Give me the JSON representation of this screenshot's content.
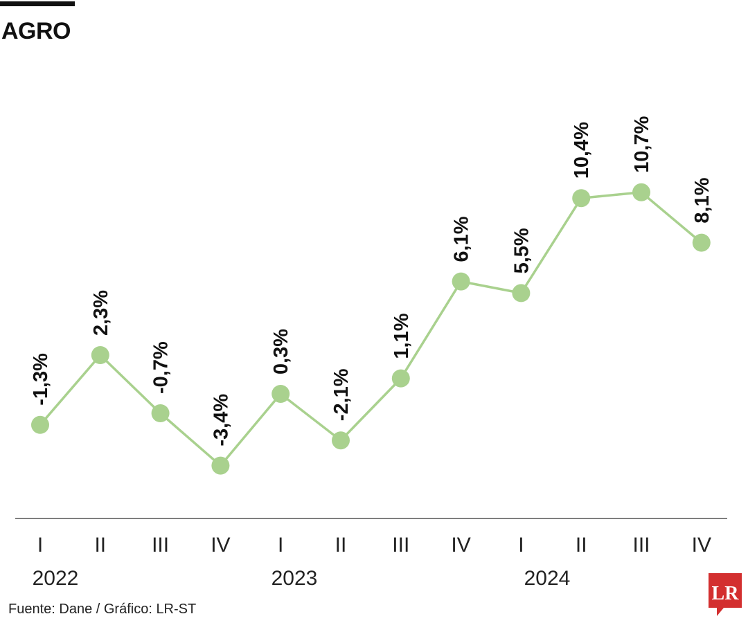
{
  "header": {
    "title": "AGRO"
  },
  "footer": {
    "source": "Fuente: Dane / Gráfico: LR-ST"
  },
  "logo": {
    "text": "LR",
    "color": "#d32f2f"
  },
  "colors": {
    "line": "#a9d18e",
    "point": "#a9d18e",
    "axis": "#555555",
    "text": "#111111"
  },
  "chart_data": {
    "type": "line",
    "title": "AGRO",
    "categories": [
      "I",
      "II",
      "III",
      "IV",
      "I",
      "II",
      "III",
      "IV",
      "I",
      "II",
      "III",
      "IV"
    ],
    "years": [
      {
        "label": "2022",
        "start": 0
      },
      {
        "label": "2023",
        "start": 4
      },
      {
        "label": "2024",
        "start": 8
      }
    ],
    "values": [
      -1.3,
      2.3,
      -0.7,
      -3.4,
      0.3,
      -2.1,
      1.1,
      6.1,
      5.5,
      10.4,
      10.7,
      8.1
    ],
    "labels": [
      "-1,3%",
      "2,3%",
      "-0,7%",
      "-3,4%",
      "0,3%",
      "-2,1%",
      "1,1%",
      "6,1%",
      "5,5%",
      "10,4%",
      "10,7%",
      "8,1%"
    ],
    "unit": "%",
    "grid": false,
    "legend": "none"
  }
}
